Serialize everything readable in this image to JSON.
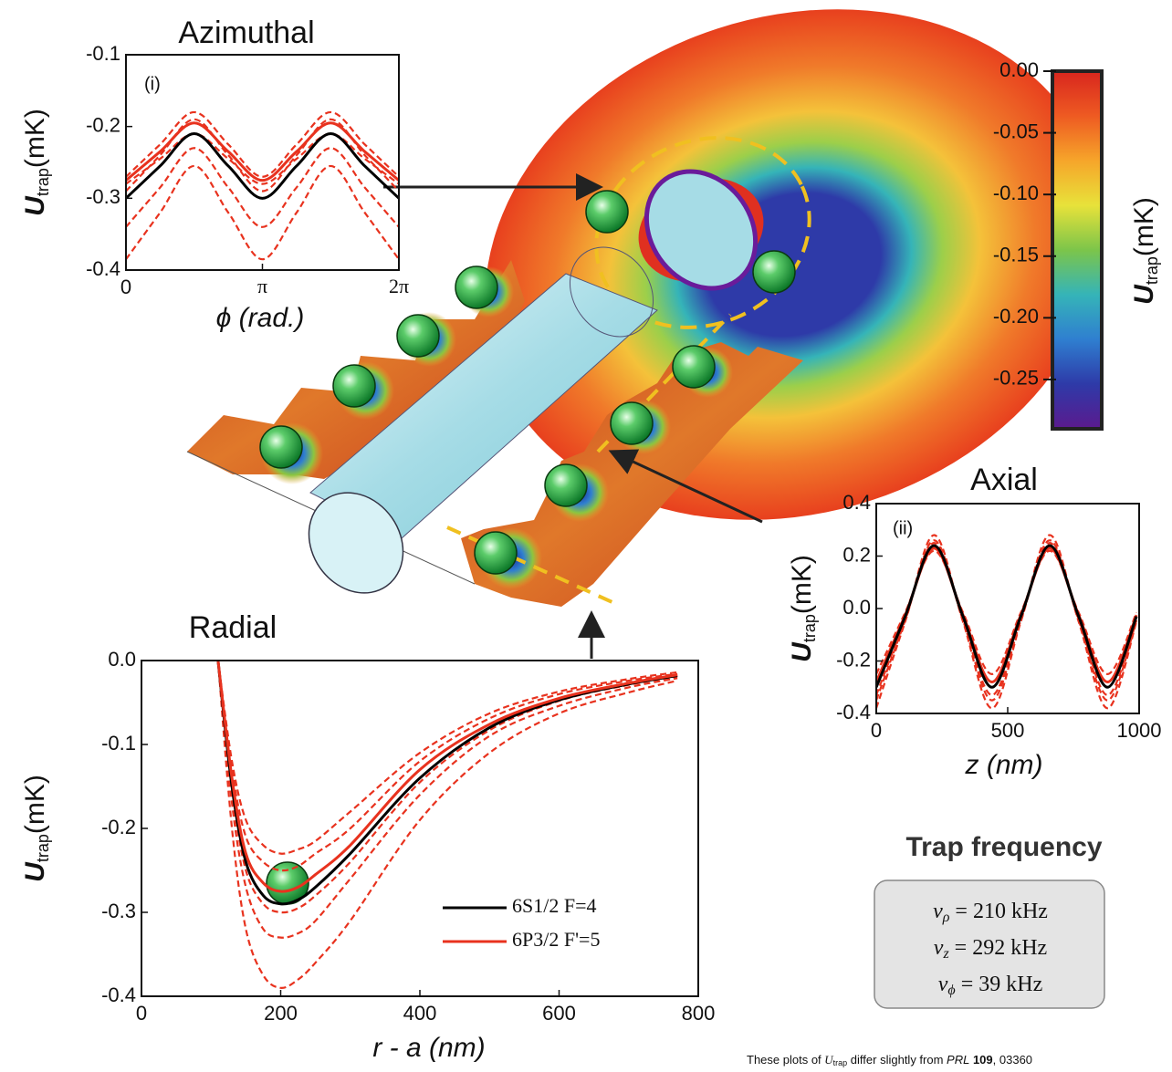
{
  "chart_data": [
    {
      "type": "line",
      "title": "Azimuthal",
      "panel_label": "(i)",
      "xlabel": "ϕ (rad.)",
      "ylabel": {
        "symbol": "U",
        "subscript": "trap",
        "unit": "(mK)"
      },
      "xlim": [
        0,
        6.2832
      ],
      "xticks": [
        0,
        {
          "value": 3.1416,
          "label": "π"
        },
        {
          "value": 6.2832,
          "label": "2π"
        }
      ],
      "ylim": [
        -0.4,
        -0.1
      ],
      "yticks": [
        -0.1,
        -0.2,
        -0.3,
        -0.4
      ],
      "x": [
        0,
        0.7854,
        1.5708,
        2.3562,
        3.1416,
        3.927,
        4.7124,
        5.4978,
        6.2832
      ],
      "series": [
        {
          "color": "#e8321e",
          "linestyle": "dashed",
          "values": [
            -0.27,
            -0.225,
            -0.18,
            -0.225,
            -0.27,
            -0.225,
            -0.18,
            -0.225,
            -0.27
          ]
        },
        {
          "color": "#e8321e",
          "linestyle": "dashed",
          "values": [
            -0.28,
            -0.245,
            -0.21,
            -0.245,
            -0.28,
            -0.245,
            -0.21,
            -0.245,
            -0.28
          ]
        },
        {
          "color": "#e8321e",
          "linestyle": "dashed",
          "values": [
            -0.29,
            -0.24,
            -0.19,
            -0.24,
            -0.29,
            -0.24,
            -0.19,
            -0.24,
            -0.29
          ]
        },
        {
          "color": "#e8321e",
          "linestyle": "dashed",
          "values": [
            -0.34,
            -0.285,
            -0.23,
            -0.285,
            -0.34,
            -0.285,
            -0.23,
            -0.285,
            -0.34
          ]
        },
        {
          "color": "#e8321e",
          "linestyle": "dashed",
          "values": [
            -0.385,
            -0.32,
            -0.255,
            -0.32,
            -0.385,
            -0.32,
            -0.255,
            -0.32,
            -0.385
          ]
        },
        {
          "color": "#e8321e",
          "linestyle": "solid",
          "values": [
            -0.275,
            -0.235,
            -0.195,
            -0.235,
            -0.275,
            -0.235,
            -0.195,
            -0.235,
            -0.275
          ]
        },
        {
          "color": "#000000",
          "linestyle": "solid",
          "values": [
            -0.3,
            -0.255,
            -0.21,
            -0.255,
            -0.3,
            -0.255,
            -0.21,
            -0.255,
            -0.3
          ]
        }
      ]
    },
    {
      "type": "line",
      "title": "Radial",
      "xlabel": "r - a (nm)",
      "ylabel": {
        "symbol": "U",
        "subscript": "trap",
        "unit": "(mK)"
      },
      "xlim": [
        0,
        800
      ],
      "xticks": [
        0,
        200,
        400,
        600,
        800
      ],
      "ylim": [
        -0.4,
        0
      ],
      "yticks": [
        {
          "value": 0,
          "label": "0.0"
        },
        -0.1,
        -0.2,
        -0.3,
        -0.4
      ],
      "x": [
        110,
        130,
        150,
        175,
        200,
        225,
        250,
        300,
        400,
        500,
        600,
        700,
        770
      ],
      "legend": "lower right",
      "series": [
        {
          "color": "#e8321e",
          "linestyle": "dashed",
          "values": [
            0,
            -0.2,
            -0.32,
            -0.375,
            -0.39,
            -0.38,
            -0.36,
            -0.31,
            -0.19,
            -0.11,
            -0.063,
            -0.038,
            -0.024
          ]
        },
        {
          "color": "#e8321e",
          "linestyle": "dashed",
          "values": [
            0,
            -0.17,
            -0.27,
            -0.32,
            -0.33,
            -0.325,
            -0.31,
            -0.26,
            -0.16,
            -0.09,
            -0.054,
            -0.032,
            -0.021
          ]
        },
        {
          "color": "#e8321e",
          "linestyle": "dashed",
          "values": [
            0,
            -0.155,
            -0.25,
            -0.29,
            -0.3,
            -0.295,
            -0.28,
            -0.24,
            -0.145,
            -0.083,
            -0.048,
            -0.029,
            -0.019
          ]
        },
        {
          "color": "#e8321e",
          "linestyle": "dashed",
          "values": [
            0,
            -0.13,
            -0.21,
            -0.24,
            -0.25,
            -0.245,
            -0.23,
            -0.2,
            -0.12,
            -0.069,
            -0.04,
            -0.024,
            -0.016
          ]
        },
        {
          "color": "#e8321e",
          "linestyle": "dashed",
          "values": [
            0,
            -0.12,
            -0.19,
            -0.22,
            -0.23,
            -0.225,
            -0.215,
            -0.18,
            -0.11,
            -0.063,
            -0.037,
            -0.022,
            -0.014
          ]
        },
        {
          "name": "6S1/2 F=4",
          "color": "#000000",
          "linestyle": "solid",
          "values": [
            0,
            -0.15,
            -0.24,
            -0.28,
            -0.29,
            -0.285,
            -0.27,
            -0.23,
            -0.14,
            -0.08,
            -0.047,
            -0.028,
            -0.018
          ]
        },
        {
          "name": "6P3/2 F'=5",
          "color": "#e8321e",
          "linestyle": "solid",
          "values": [
            0,
            -0.14,
            -0.23,
            -0.265,
            -0.275,
            -0.27,
            -0.255,
            -0.22,
            -0.13,
            -0.076,
            -0.045,
            -0.027,
            -0.017
          ]
        }
      ]
    },
    {
      "type": "line",
      "title": "Axial",
      "panel_label": "(ii)",
      "xlabel": "z (nm)",
      "ylabel": {
        "symbol": "U",
        "subscript": "trap",
        "unit": "(mK)"
      },
      "xlim": [
        0,
        1000
      ],
      "xticks": [
        0,
        500,
        1000
      ],
      "ylim": [
        -0.4,
        0.4
      ],
      "yticks": [
        0.4,
        0.2,
        {
          "value": 0,
          "label": "0.0"
        },
        -0.2,
        -0.4
      ],
      "x": [
        0,
        110,
        220,
        330,
        440,
        550,
        660,
        770,
        880,
        990
      ],
      "series": [
        {
          "color": "#e8321e",
          "linestyle": "dashed",
          "values": [
            -0.38,
            -0.05,
            0.28,
            -0.05,
            -0.38,
            -0.05,
            0.28,
            -0.05,
            -0.38,
            -0.05
          ]
        },
        {
          "color": "#e8321e",
          "linestyle": "dashed",
          "values": [
            -0.35,
            -0.045,
            0.26,
            -0.045,
            -0.35,
            -0.045,
            0.26,
            -0.045,
            -0.35,
            -0.045
          ]
        },
        {
          "color": "#e8321e",
          "linestyle": "dashed",
          "values": [
            -0.33,
            -0.04,
            0.25,
            -0.04,
            -0.33,
            -0.04,
            0.25,
            -0.04,
            -0.33,
            -0.04
          ]
        },
        {
          "color": "#e8321e",
          "linestyle": "dashed",
          "values": [
            -0.25,
            -0.015,
            0.22,
            -0.015,
            -0.25,
            -0.015,
            0.22,
            -0.015,
            -0.25,
            -0.015
          ]
        },
        {
          "color": "#e8321e",
          "linestyle": "solid",
          "values": [
            -0.28,
            -0.025,
            0.23,
            -0.025,
            -0.28,
            -0.025,
            0.23,
            -0.025,
            -0.28,
            -0.025
          ]
        },
        {
          "color": "#000000",
          "linestyle": "solid",
          "values": [
            -0.3,
            -0.03,
            0.24,
            -0.03,
            -0.3,
            -0.03,
            0.24,
            -0.03,
            -0.3,
            -0.03
          ]
        }
      ]
    },
    {
      "type": "colorbar",
      "ylabel": {
        "symbol": "U",
        "subscript": "trap",
        "unit": "(mK)"
      },
      "ylim": [
        -0.29,
        0
      ],
      "yticks": [
        {
          "value": 0,
          "label": "0.00"
        },
        -0.05,
        {
          "value": -0.1,
          "label": "-0.10"
        },
        -0.15,
        {
          "value": -0.2,
          "label": "-0.20"
        },
        -0.25
      ],
      "colormap": [
        "#5b1a8e",
        "#2e3aa8",
        "#2f7fd0",
        "#35b4b8",
        "#7cc54a",
        "#e8e23a",
        "#f6a52a",
        "#ee5a22",
        "#d8261e"
      ]
    }
  ],
  "trap_frequency": {
    "title": "Trap frequency",
    "lines": [
      {
        "symbol": "ν",
        "subscript": "ρ",
        "text": " = 210 kHz"
      },
      {
        "symbol": "ν",
        "subscript": "z",
        "text": " = 292 kHz"
      },
      {
        "symbol": "ν",
        "subscript": "ϕ",
        "text": " = 39 kHz"
      }
    ]
  },
  "footnote": {
    "before": "These plots of ",
    "symbol": "U",
    "subscript": "trap",
    "after": " differ slightly from ",
    "journal": "PRL",
    "volume": " 109",
    "rest": ", 03360"
  }
}
